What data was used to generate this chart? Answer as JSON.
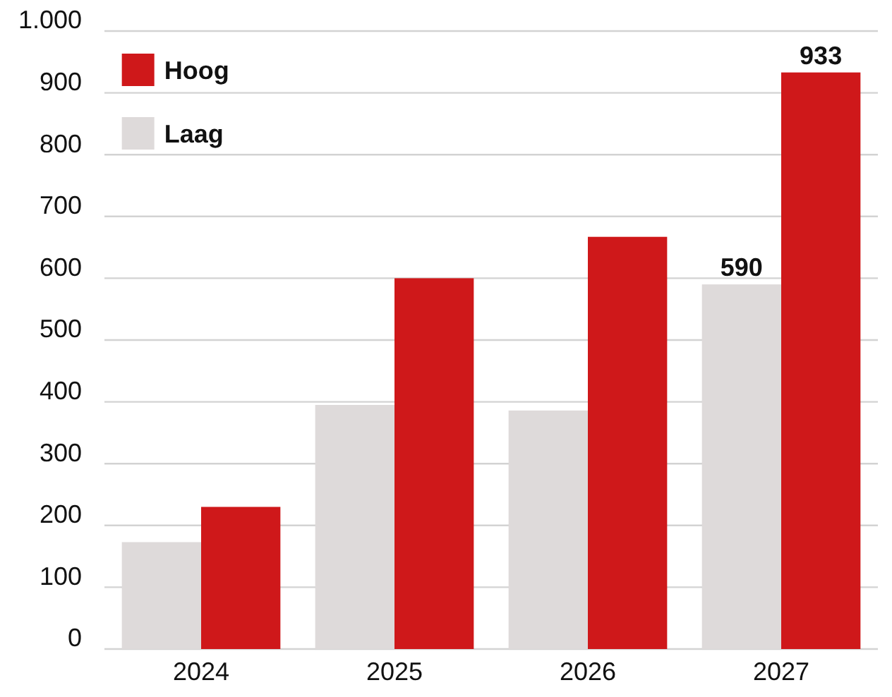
{
  "chart_data": {
    "type": "bar",
    "categories": [
      "2024",
      "2025",
      "2026",
      "2027"
    ],
    "series": [
      {
        "name": "Laag",
        "color": "#dedada",
        "values": [
          173,
          395,
          386,
          590
        ],
        "value_labels": [
          null,
          null,
          null,
          "590"
        ]
      },
      {
        "name": "Hoog",
        "color": "#cf181a",
        "values": [
          230,
          600,
          667,
          933
        ],
        "value_labels": [
          null,
          null,
          null,
          "933"
        ]
      }
    ],
    "ylim": [
      0,
      1000
    ],
    "yticks": [
      0,
      100,
      200,
      300,
      400,
      500,
      600,
      700,
      800,
      900,
      {
        "value": 1000,
        "label": "1.000"
      }
    ],
    "grid": "y",
    "legend": "top left"
  }
}
